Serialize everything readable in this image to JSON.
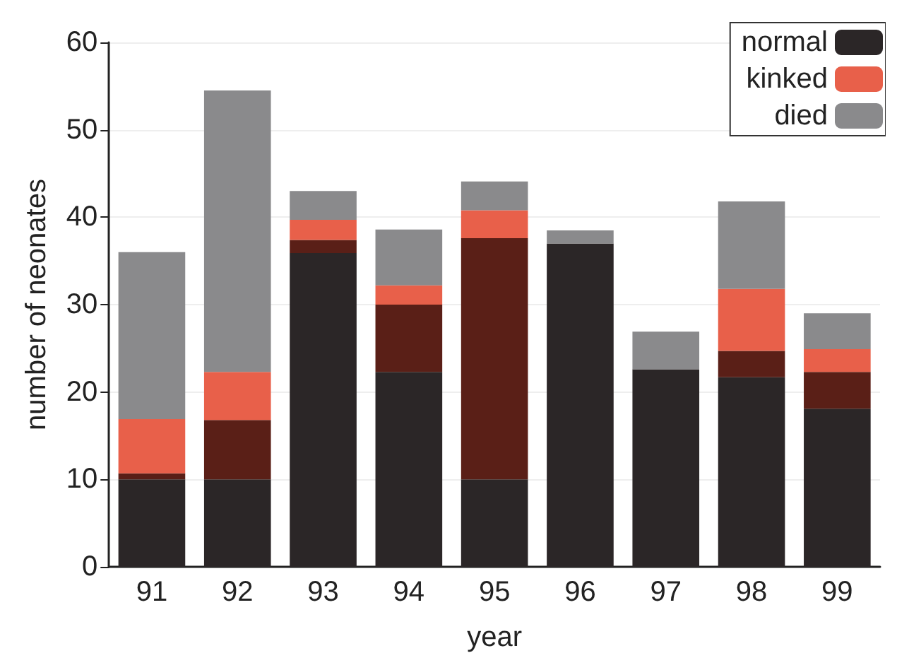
{
  "chart_data": {
    "type": "bar",
    "stacked": true,
    "xlabel": "year",
    "ylabel": "number of neonates",
    "categories": [
      "91",
      "92",
      "93",
      "94",
      "95",
      "96",
      "97",
      "98",
      "99"
    ],
    "series": [
      {
        "name": "normal",
        "color": "#2b2627",
        "values": [
          10,
          10,
          35.9,
          22.3,
          10,
          37,
          22.6,
          21.7,
          18.1
        ]
      },
      {
        "color": "#5a1f17",
        "values": [
          0.7,
          6.8,
          1.5,
          7.7,
          27.6,
          0,
          0,
          3,
          4.2
        ]
      },
      {
        "name": "kinked",
        "color": "#e8604a",
        "values": [
          6.2,
          5.5,
          2.3,
          2.2,
          3.2,
          0,
          0,
          7.1,
          2.6
        ]
      },
      {
        "name": "died",
        "color": "#8a8a8c",
        "values": [
          19.1,
          32.2,
          3.3,
          6.4,
          3.3,
          1.5,
          4.3,
          10,
          4.1
        ]
      }
    ],
    "ylim": [
      0,
      60
    ],
    "yticks": [
      0,
      10,
      20,
      30,
      40,
      50,
      60
    ],
    "grid": "y",
    "legend": "top right"
  }
}
